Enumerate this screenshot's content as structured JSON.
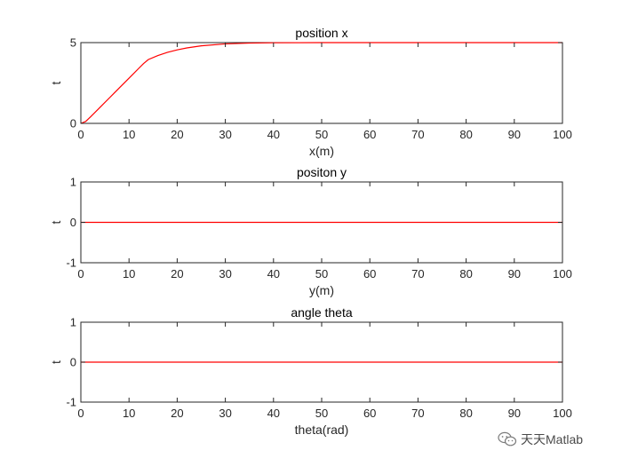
{
  "chart_data": [
    {
      "type": "line",
      "title": "position x",
      "xlabel": "x(m)",
      "ylabel": "t",
      "xlim": [
        0,
        100
      ],
      "ylim": [
        0,
        5
      ],
      "xticks": [
        0,
        10,
        20,
        30,
        40,
        50,
        60,
        70,
        80,
        90,
        100
      ],
      "yticks": [
        0,
        5
      ],
      "grid": false,
      "series": [
        {
          "color": "#ff0000",
          "x": [
            0,
            1,
            2,
            4,
            6,
            8,
            10,
            12,
            13,
            14,
            16,
            18,
            20,
            22,
            25,
            30,
            35,
            40,
            50,
            60,
            80,
            100
          ],
          "y": [
            0,
            0.12,
            0.4,
            1.0,
            1.6,
            2.2,
            2.8,
            3.4,
            3.7,
            3.95,
            4.2,
            4.4,
            4.55,
            4.67,
            4.8,
            4.92,
            4.97,
            4.99,
            5.0,
            5.0,
            5.0,
            5.0
          ]
        }
      ]
    },
    {
      "type": "line",
      "title": "positon y",
      "xlabel": "y(m)",
      "ylabel": "t",
      "xlim": [
        0,
        100
      ],
      "ylim": [
        -1,
        1
      ],
      "xticks": [
        0,
        10,
        20,
        30,
        40,
        50,
        60,
        70,
        80,
        90,
        100
      ],
      "yticks": [
        -1,
        0,
        1
      ],
      "grid": false,
      "series": [
        {
          "color": "#ff0000",
          "x": [
            0,
            100
          ],
          "y": [
            0,
            0
          ]
        }
      ]
    },
    {
      "type": "line",
      "title": "angle theta",
      "xlabel": "theta(rad)",
      "ylabel": "t",
      "xlim": [
        0,
        100
      ],
      "ylim": [
        -1,
        1
      ],
      "xticks": [
        0,
        10,
        20,
        30,
        40,
        50,
        60,
        70,
        80,
        90,
        100
      ],
      "yticks": [
        -1,
        0,
        1
      ],
      "grid": false,
      "series": [
        {
          "color": "#ff0000",
          "x": [
            0,
            100
          ],
          "y": [
            0,
            0
          ]
        }
      ]
    }
  ],
  "watermark": {
    "text": "天天Matlab",
    "icon": "wechat-icon"
  }
}
